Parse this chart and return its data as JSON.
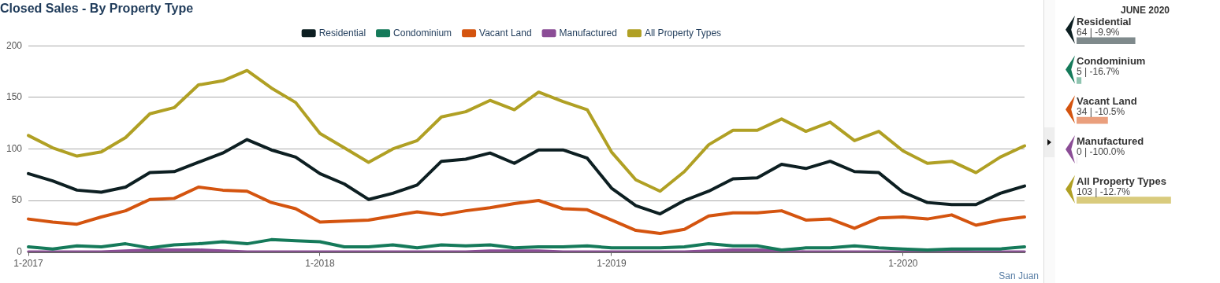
{
  "chart_data": [
    {
      "type": "line",
      "title": "Closed Sales - By Property Type",
      "categories": [
        "1-2017",
        null,
        null,
        null,
        null,
        null,
        null,
        null,
        null,
        null,
        null,
        null,
        "1-2018",
        null,
        null,
        null,
        null,
        null,
        null,
        null,
        null,
        null,
        null,
        null,
        "1-2019",
        null,
        null,
        null,
        null,
        null,
        null,
        null,
        null,
        null,
        null,
        null,
        "1-2020",
        null,
        null,
        null,
        null,
        null
      ],
      "series": [
        {
          "name": "Residential",
          "color": "#0d1f22",
          "values": [
            76,
            69,
            60,
            58,
            63,
            77,
            78,
            87,
            96,
            109,
            99,
            92,
            76,
            66,
            51,
            57,
            65,
            88,
            90,
            96,
            86,
            99,
            99,
            91,
            62,
            45,
            37,
            50,
            59,
            71,
            72,
            85,
            81,
            88,
            78,
            77,
            58,
            48,
            46,
            46,
            57,
            64
          ]
        },
        {
          "name": "Condominium",
          "color": "#157a5a",
          "values": [
            5,
            3,
            6,
            5,
            8,
            4,
            7,
            8,
            10,
            8,
            12,
            11,
            10,
            5,
            5,
            7,
            4,
            7,
            6,
            7,
            4,
            5,
            5,
            6,
            4,
            4,
            4,
            5,
            8,
            6,
            6,
            2,
            4,
            4,
            6,
            4,
            3,
            2,
            3,
            3,
            3,
            5
          ]
        },
        {
          "name": "Vacant Land",
          "color": "#d4540f",
          "values": [
            32,
            29,
            27,
            34,
            40,
            51,
            52,
            63,
            60,
            59,
            48,
            42,
            29,
            30,
            31,
            35,
            39,
            36,
            40,
            43,
            47,
            50,
            42,
            41,
            31,
            21,
            18,
            22,
            35,
            38,
            38,
            40,
            31,
            32,
            23,
            33,
            34,
            32,
            36,
            26,
            31,
            34
          ]
        },
        {
          "name": "Manufactured",
          "color": "#8b4d96",
          "values": [
            0,
            0,
            0,
            0,
            1,
            2,
            2,
            2,
            1,
            0,
            0,
            0,
            0,
            0,
            0,
            0,
            0,
            0,
            0,
            1,
            1,
            1,
            0,
            0,
            0,
            0,
            0,
            0,
            1,
            2,
            2,
            1,
            0,
            0,
            0,
            0,
            0,
            1,
            1,
            0,
            0,
            0
          ]
        },
        {
          "name": "All Property Types",
          "color": "#b0a024",
          "values": [
            113,
            101,
            93,
            97,
            111,
            134,
            140,
            162,
            166,
            176,
            159,
            145,
            115,
            101,
            87,
            100,
            108,
            131,
            136,
            147,
            138,
            155,
            146,
            138,
            97,
            70,
            59,
            78,
            104,
            118,
            118,
            129,
            117,
            126,
            108,
            117,
            98,
            86,
            88,
            77,
            92,
            103
          ]
        }
      ],
      "ylim": [
        0,
        200
      ],
      "yticks": [
        0,
        50,
        100,
        150,
        200
      ],
      "grid": "y",
      "legend": "top",
      "marker": "none",
      "line_style": "solid",
      "annotations": [
        "San Juan"
      ]
    },
    {
      "type": "bar",
      "orientation": "horizontal",
      "title": "JUNE 2020",
      "categories": [
        "Residential",
        "Condominium",
        "Vacant Land",
        "Manufactured",
        "All Property Types"
      ],
      "values": [
        64,
        5,
        34,
        0,
        103
      ],
      "colors": [
        "#7f8a8c",
        "#8fc4b0",
        "#ea9f7d",
        "#c5a6cc",
        "#d9cb7d"
      ],
      "value_labels": [
        "64 | -9.9%",
        "5 | -16.7%",
        "34 | -10.5%",
        "0 | -100.0%",
        "103 | -12.7%"
      ],
      "tick_labels": false
    }
  ]
}
